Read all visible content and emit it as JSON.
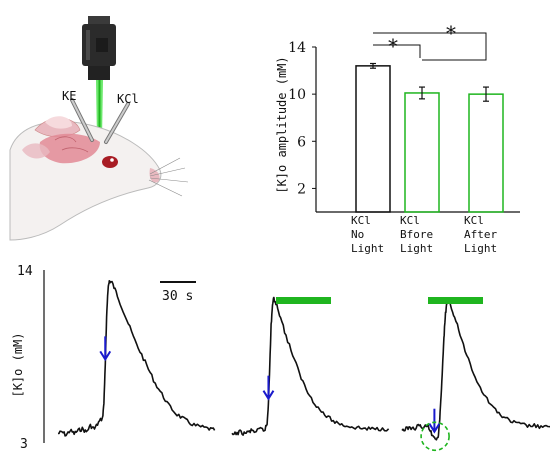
{
  "colors": {
    "green": "#1fb51f",
    "black": "#111111",
    "blue": "#1a1acc",
    "rat_pink": "#e9b9c0",
    "brain_pink": "#e28a95",
    "eye": "#a81c24",
    "laser": "#5be55b"
  },
  "illustration": {
    "electrode_ke_label": "KE",
    "electrode_kcl_label": "KCl",
    "objects": [
      "camera-icon",
      "laser-beam",
      "rat-head",
      "electrode"
    ]
  },
  "chart_data": [
    {
      "type": "bar",
      "categories": [
        {
          "lines": [
            "KCl",
            "No",
            "Light"
          ],
          "color": "#111111"
        },
        {
          "lines": [
            "KCl",
            "Bfore",
            "Light"
          ],
          "color": "#1fb51f"
        },
        {
          "lines": [
            "KCl",
            "After",
            "Light"
          ],
          "color": "#1fb51f"
        }
      ],
      "values": [
        12.4,
        10.1,
        10.0
      ],
      "errors": [
        0.2,
        0.5,
        0.6
      ],
      "ylabel": "[K]o amplitude (mM)",
      "ylim": [
        0,
        14
      ],
      "yticks": [
        2,
        6,
        10,
        14
      ],
      "significance": [
        {
          "from": 0,
          "to": 1,
          "label": "*"
        },
        {
          "from": 0,
          "to": 2,
          "label": "*"
        }
      ]
    },
    {
      "type": "line",
      "ylabel": "[K]o (mM)",
      "ylim": [
        3,
        14
      ],
      "ytick_labels": [
        "14",
        "3"
      ],
      "scale_bar_label": "30 s",
      "traces": [
        {
          "name": "KCl",
          "points": [
            [
              0,
              3.6
            ],
            [
              3,
              3.7
            ],
            [
              6,
              3.5
            ],
            [
              9,
              3.8
            ],
            [
              12,
              3.6
            ],
            [
              15,
              3.8
            ],
            [
              18,
              3.9
            ],
            [
              21,
              3.7
            ],
            [
              24,
              4.1
            ],
            [
              27,
              3.9
            ],
            [
              30,
              4.3
            ],
            [
              33,
              4.6
            ],
            [
              34,
              5.5
            ],
            [
              35,
              8.0
            ],
            [
              36,
              11.0
            ],
            [
              37,
              12.8
            ],
            [
              38,
              13.3
            ],
            [
              40,
              13.2
            ],
            [
              43,
              12.6
            ],
            [
              47,
              11.7
            ],
            [
              52,
              10.6
            ],
            [
              57,
              9.5
            ],
            [
              62,
              8.6
            ],
            [
              67,
              7.7
            ],
            [
              72,
              6.8
            ],
            [
              77,
              6.1
            ],
            [
              82,
              5.4
            ],
            [
              87,
              4.9
            ],
            [
              92,
              4.6
            ],
            [
              97,
              4.3
            ],
            [
              102,
              4.1
            ],
            [
              107,
              4.0
            ],
            [
              112,
              3.9
            ],
            [
              116,
              3.8
            ]
          ],
          "light_bar": false,
          "arrow_t": 35,
          "circle": false
        },
        {
          "name": "KCl Before Light",
          "points": [
            [
              0,
              3.5
            ],
            [
              3,
              3.6
            ],
            [
              6,
              3.7
            ],
            [
              9,
              3.6
            ],
            [
              12,
              3.7
            ],
            [
              15,
              3.8
            ],
            [
              18,
              3.7
            ],
            [
              21,
              3.9
            ],
            [
              24,
              3.8
            ],
            [
              26,
              4.2
            ],
            [
              27,
              5.5
            ],
            [
              28,
              8.0
            ],
            [
              29,
              10.5
            ],
            [
              30,
              11.8
            ],
            [
              31,
              12.2
            ],
            [
              33,
              11.8
            ],
            [
              36,
              11.0
            ],
            [
              40,
              9.8
            ],
            [
              45,
              8.6
            ],
            [
              50,
              7.4
            ],
            [
              55,
              6.4
            ],
            [
              60,
              5.7
            ],
            [
              65,
              5.1
            ],
            [
              70,
              4.7
            ],
            [
              75,
              4.4
            ],
            [
              80,
              4.2
            ],
            [
              85,
              4.1
            ],
            [
              90,
              4.0
            ],
            [
              95,
              3.95
            ],
            [
              100,
              3.9
            ],
            [
              105,
              3.9
            ],
            [
              110,
              3.9
            ],
            [
              116,
              3.9
            ]
          ],
          "light_bar": true,
          "arrow_t": 27,
          "circle": false
        },
        {
          "name": "KCl After Light",
          "points": [
            [
              0,
              3.8
            ],
            [
              3,
              3.9
            ],
            [
              6,
              4.0
            ],
            [
              9,
              3.9
            ],
            [
              12,
              4.1
            ],
            [
              15,
              4.0
            ],
            [
              18,
              4.1
            ],
            [
              20,
              4.0
            ],
            [
              22,
              3.6
            ],
            [
              24,
              3.4
            ],
            [
              26,
              3.2
            ],
            [
              27,
              3.5
            ],
            [
              28,
              4.6
            ],
            [
              29,
              6.0
            ],
            [
              30,
              7.8
            ],
            [
              31,
              9.6
            ],
            [
              32,
              11.0
            ],
            [
              33,
              11.8
            ],
            [
              34,
              12.1
            ],
            [
              36,
              11.8
            ],
            [
              39,
              11.0
            ],
            [
              43,
              9.9
            ],
            [
              48,
              8.6
            ],
            [
              53,
              7.5
            ],
            [
              58,
              6.5
            ],
            [
              63,
              5.8
            ],
            [
              68,
              5.2
            ],
            [
              73,
              4.8
            ],
            [
              78,
              4.5
            ],
            [
              83,
              4.3
            ],
            [
              88,
              4.2
            ],
            [
              93,
              4.1
            ],
            [
              98,
              4.1
            ],
            [
              103,
              4.0
            ],
            [
              108,
              4.0
            ],
            [
              116,
              4.0
            ]
          ],
          "light_bar": true,
          "arrow_t": 24,
          "circle": true
        }
      ]
    }
  ]
}
